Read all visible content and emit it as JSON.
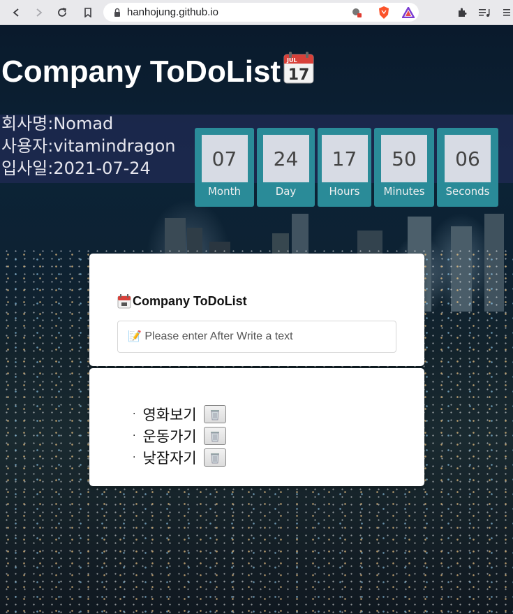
{
  "browser": {
    "url": "hanhojung.github.io"
  },
  "header": {
    "title": "Company ToDoList",
    "title_icon": "calendar-icon",
    "calendar_month": "JUL",
    "calendar_day": "17"
  },
  "info": {
    "company": "회사명:Nomad",
    "user": "사용자:vitamindragon",
    "join_date": "입사일:2021-07-24"
  },
  "timer": {
    "month": {
      "value": "07",
      "label": "Month"
    },
    "day": {
      "value": "24",
      "label": "Day"
    },
    "hours": {
      "value": "17",
      "label": "Hours"
    },
    "minutes": {
      "value": "50",
      "label": "Minutes"
    },
    "seconds": {
      "value": "06",
      "label": "Seconds"
    }
  },
  "form": {
    "title": "Company ToDoList",
    "placeholder": "📝 Please enter After Write a text"
  },
  "todos": [
    {
      "text": "영화보기",
      "bullet": "·"
    },
    {
      "text": "운동가기",
      "bullet": "·"
    },
    {
      "text": "낮잠자기",
      "bullet": "·"
    }
  ],
  "colors": {
    "timer_card": "#2a8b98",
    "timer_box": "#d7dbe4"
  }
}
